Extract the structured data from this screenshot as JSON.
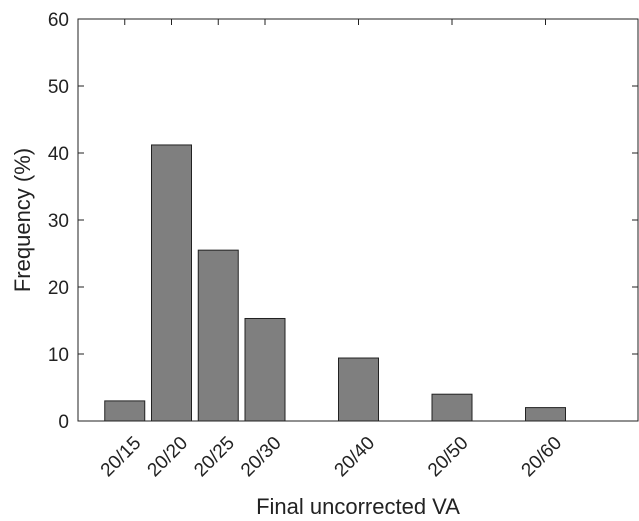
{
  "chart_data": {
    "type": "bar",
    "title": "",
    "xlabel": "Final uncorrected VA",
    "ylabel": "Frequency (%)",
    "ylim": [
      0,
      60
    ],
    "yticks": [
      0,
      10,
      20,
      30,
      40,
      50,
      60
    ],
    "xlim": [
      0,
      12
    ],
    "categories": [
      "20/15",
      "20/20",
      "20/25",
      "20/30",
      "20/40",
      "20/50",
      "20/60"
    ],
    "x_positions": [
      1,
      2,
      3,
      4,
      6,
      8,
      10
    ],
    "values": [
      3,
      41.2,
      25.5,
      15.3,
      9.4,
      4,
      2
    ],
    "grid": false,
    "bar_color": "#7f7f7f",
    "bar_edge_color": "#222222"
  }
}
